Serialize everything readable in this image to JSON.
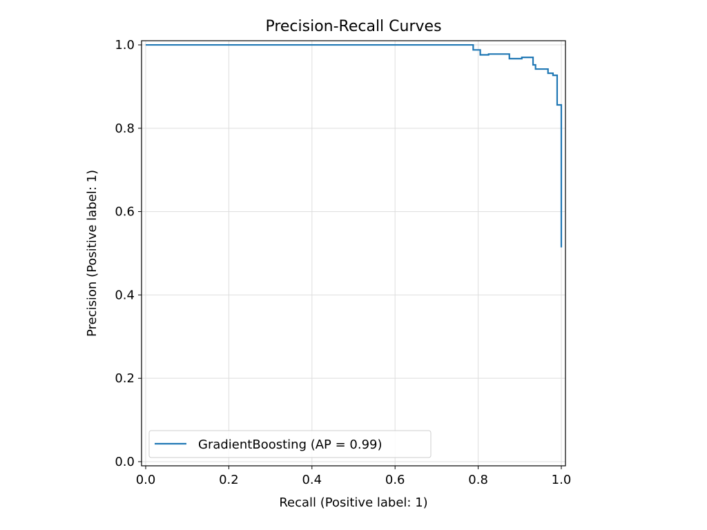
{
  "chart_data": {
    "type": "line",
    "title": "Precision-Recall Curves",
    "xlabel": "Recall (Positive label: 1)",
    "ylabel": "Precision (Positive label: 1)",
    "xlim": [
      -0.01,
      1.01
    ],
    "ylim": [
      -0.01,
      1.01
    ],
    "xticks": [
      0.0,
      0.2,
      0.4,
      0.6,
      0.8,
      1.0
    ],
    "xtick_labels": [
      "0.0",
      "0.2",
      "0.4",
      "0.6",
      "0.8",
      "1.0"
    ],
    "yticks": [
      0.0,
      0.2,
      0.4,
      0.6,
      0.8,
      1.0
    ],
    "ytick_labels": [
      "0.0",
      "0.2",
      "0.4",
      "0.6",
      "0.8",
      "1.0"
    ],
    "grid": true,
    "legend_position": "lower-left",
    "series": [
      {
        "name": "GradientBoosting (AP = 0.99)",
        "color": "#1f77b4",
        "drawstyle": "steps",
        "points": [
          [
            0.0,
            1.0
          ],
          [
            0.788,
            1.0
          ],
          [
            0.788,
            0.988
          ],
          [
            0.805,
            0.988
          ],
          [
            0.805,
            0.976
          ],
          [
            0.825,
            0.976
          ],
          [
            0.825,
            0.978
          ],
          [
            0.875,
            0.978
          ],
          [
            0.875,
            0.967
          ],
          [
            0.905,
            0.967
          ],
          [
            0.905,
            0.97
          ],
          [
            0.932,
            0.97
          ],
          [
            0.932,
            0.952
          ],
          [
            0.938,
            0.952
          ],
          [
            0.938,
            0.942
          ],
          [
            0.968,
            0.942
          ],
          [
            0.968,
            0.932
          ],
          [
            0.98,
            0.932
          ],
          [
            0.98,
            0.927
          ],
          [
            0.99,
            0.927
          ],
          [
            0.99,
            0.856
          ],
          [
            1.0,
            0.856
          ],
          [
            1.0,
            0.514
          ]
        ]
      }
    ]
  }
}
